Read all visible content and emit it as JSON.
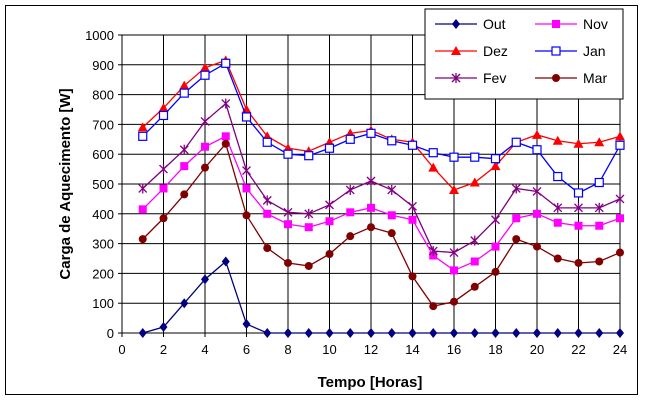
{
  "chart_data": {
    "type": "line",
    "title": "",
    "xlabel": "Tempo [Horas]",
    "ylabel": "Carga de Aquecimento [W]",
    "xlim": [
      0,
      24
    ],
    "ylim": [
      0,
      1000
    ],
    "xticks": [
      0,
      2,
      4,
      6,
      8,
      10,
      12,
      14,
      16,
      18,
      20,
      22,
      24
    ],
    "yticks": [
      0,
      100,
      200,
      300,
      400,
      500,
      600,
      700,
      800,
      900,
      1000
    ],
    "grid": true,
    "legend_position": "top-right",
    "x": [
      1,
      2,
      3,
      4,
      5,
      6,
      7,
      8,
      9,
      10,
      11,
      12,
      13,
      14,
      15,
      16,
      17,
      18,
      19,
      20,
      21,
      22,
      23,
      24
    ],
    "series": [
      {
        "name": "Out",
        "color": "#000080",
        "marker": "diamond",
        "values": [
          0,
          20,
          100,
          180,
          240,
          30,
          0,
          0,
          0,
          0,
          0,
          0,
          0,
          0,
          0,
          0,
          0,
          0,
          0,
          0,
          0,
          0,
          0,
          0
        ]
      },
      {
        "name": "Nov",
        "color": "#ff00ff",
        "marker": "square",
        "values": [
          415,
          485,
          560,
          625,
          660,
          485,
          400,
          365,
          355,
          375,
          405,
          420,
          395,
          380,
          260,
          210,
          240,
          290,
          385,
          400,
          370,
          360,
          360,
          385
        ]
      },
      {
        "name": "Dez",
        "color": "#ff0000",
        "marker": "triangle",
        "values": [
          690,
          755,
          830,
          890,
          915,
          750,
          660,
          620,
          610,
          640,
          670,
          680,
          650,
          640,
          555,
          480,
          505,
          560,
          640,
          665,
          645,
          635,
          640,
          660
        ]
      },
      {
        "name": "Jan",
        "color": "#0000ff",
        "marker": "open-square",
        "values": [
          660,
          730,
          805,
          865,
          905,
          725,
          640,
          600,
          595,
          620,
          650,
          670,
          645,
          630,
          605,
          590,
          590,
          585,
          640,
          615,
          525,
          470,
          505,
          630
        ]
      },
      {
        "name": "Fev",
        "color": "#800080",
        "marker": "asterisk",
        "values": [
          485,
          550,
          615,
          710,
          770,
          545,
          445,
          405,
          400,
          430,
          480,
          510,
          480,
          425,
          275,
          270,
          310,
          380,
          485,
          475,
          420,
          420,
          420,
          450
        ]
      },
      {
        "name": "Mar",
        "color": "#800000",
        "marker": "circle",
        "values": [
          315,
          385,
          465,
          555,
          635,
          395,
          285,
          235,
          225,
          265,
          325,
          355,
          335,
          190,
          90,
          105,
          155,
          205,
          315,
          290,
          250,
          235,
          240,
          270
        ]
      }
    ]
  }
}
